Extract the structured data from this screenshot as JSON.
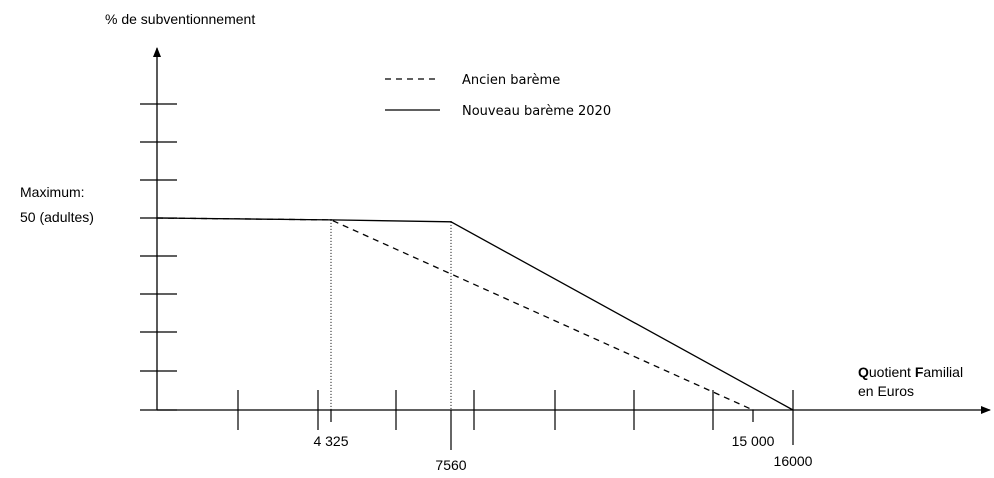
{
  "chart_data": {
    "type": "line",
    "ylabel": "% de subventionnement",
    "xlabel_bold_1": "Q",
    "xlabel_rest_1": "uotient ",
    "xlabel_bold_2": "F",
    "xlabel_rest_2": "amilial",
    "xlabel_line2": "en Euros",
    "max_label_line1": "Maximum:",
    "max_label_line2": "50 (adultes)",
    "xlim": [
      0,
      16000
    ],
    "ylim": [
      0,
      50
    ],
    "x_tick_labels": [
      {
        "value": 4325,
        "text": "4 325"
      },
      {
        "value": 7560,
        "text": "7560"
      },
      {
        "value": 15000,
        "text": "15 000"
      },
      {
        "value": 16000,
        "text": "16000"
      }
    ],
    "series": [
      {
        "name": "Ancien barème",
        "style": "dashed",
        "points": [
          [
            0,
            50
          ],
          [
            4325,
            49.5
          ],
          [
            15000,
            0
          ]
        ]
      },
      {
        "name": "Nouveau barème 2020",
        "style": "solid",
        "points": [
          [
            0,
            50
          ],
          [
            4325,
            49.5
          ],
          [
            7560,
            49
          ],
          [
            16000,
            0
          ]
        ]
      }
    ],
    "legend_position": "top-center",
    "color": "#000000"
  }
}
